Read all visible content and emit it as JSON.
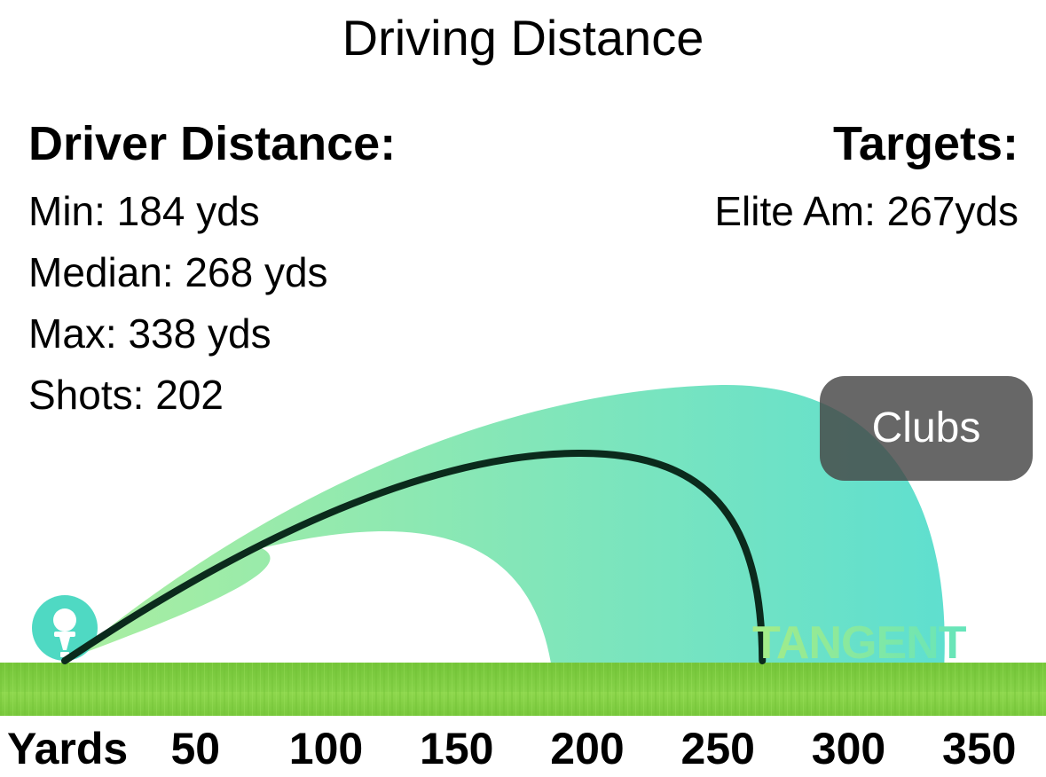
{
  "title": "Driving Distance",
  "driver": {
    "heading": "Driver Distance:",
    "min": "Min: 184 yds",
    "median": "Median: 268 yds",
    "max": "Max: 338 yds",
    "shots": "Shots: 202"
  },
  "targets": {
    "heading": "Targets:",
    "elite_am": "Elite Am: 267yds"
  },
  "clubs_button": "Clubs",
  "watermark": "TANGENT",
  "axis": {
    "label": "Yards",
    "ticks": [
      "50",
      "100",
      "150",
      "200",
      "250",
      "300",
      "350"
    ]
  },
  "chart_data": {
    "type": "area",
    "x_unit": "yards",
    "xlim": [
      0,
      360
    ],
    "ticks": [
      50,
      100,
      150,
      200,
      250,
      300,
      350
    ],
    "dispersion": {
      "min": 184,
      "max": 338
    },
    "median_carry": 268,
    "colors": {
      "band_start": "#aaeea0",
      "band_end": "#5fdfcf",
      "median_line": "#0b2a1c",
      "grass": "#7ccc3e",
      "tee_marker": "#4fd9c3"
    }
  }
}
